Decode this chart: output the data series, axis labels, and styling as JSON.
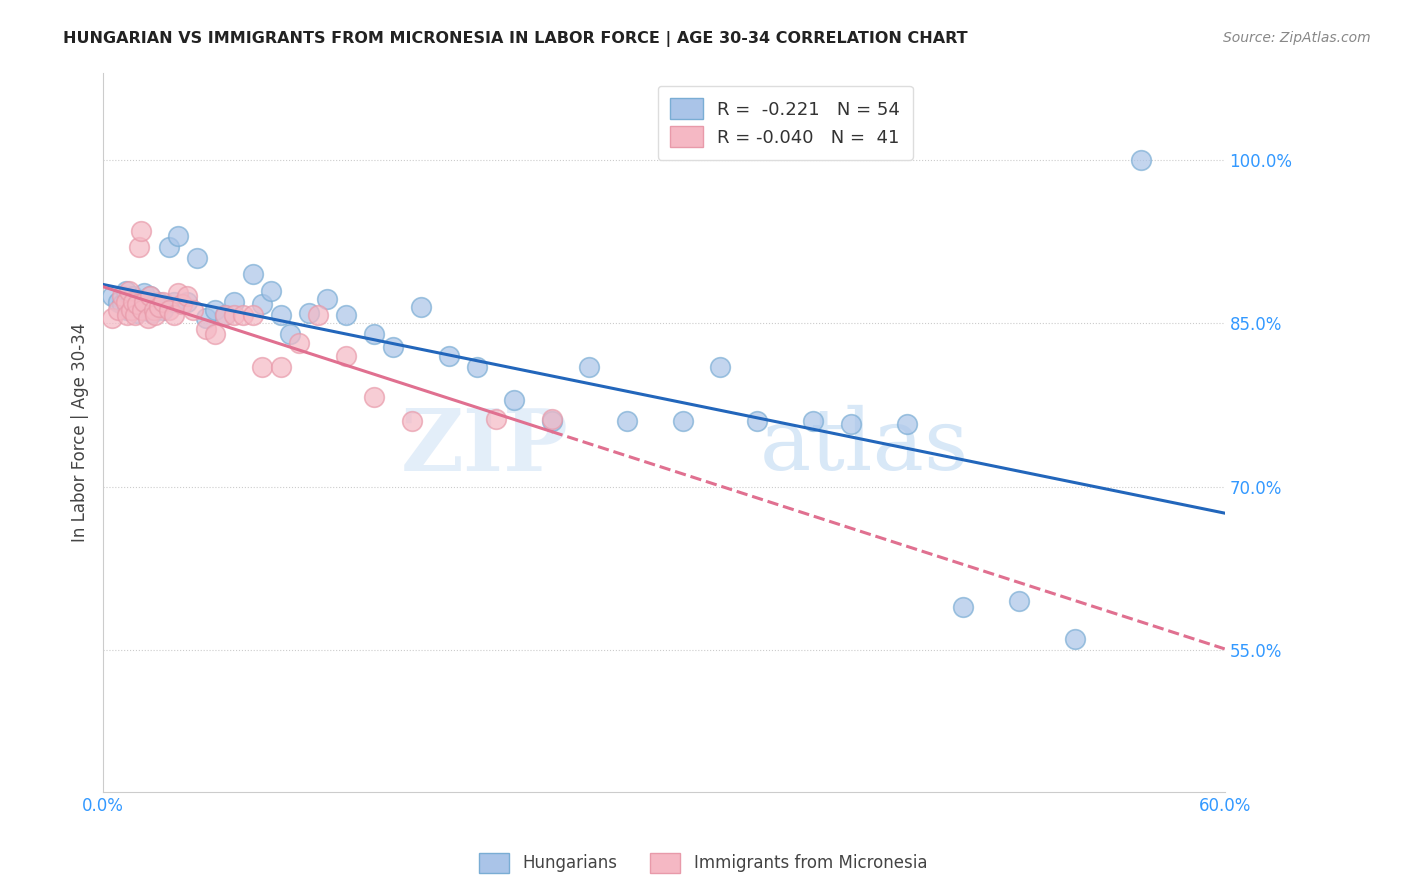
{
  "title": "HUNGARIAN VS IMMIGRANTS FROM MICRONESIA IN LABOR FORCE | AGE 30-34 CORRELATION CHART",
  "source": "Source: ZipAtlas.com",
  "ylabel": "In Labor Force | Age 30-34",
  "xlim": [
    0.0,
    0.6
  ],
  "ylim": [
    0.42,
    1.08
  ],
  "xticks": [
    0.0,
    0.6
  ],
  "xticklabels": [
    "0.0%",
    "60.0%"
  ],
  "yticks_right": [
    0.55,
    0.7,
    0.85,
    1.0
  ],
  "yticklabels_right": [
    "55.0%",
    "70.0%",
    "85.0%",
    "100.0%"
  ],
  "blue_color": "#aac4e8",
  "pink_color": "#f5b8c4",
  "blue_edge_color": "#7aadd4",
  "pink_edge_color": "#e89aaa",
  "blue_line_color": "#2266bb",
  "pink_line_color": "#e07090",
  "legend_r_blue": "-0.221",
  "legend_n_blue": "54",
  "legend_r_pink": "-0.040",
  "legend_n_pink": "41",
  "blue_scatter_x": [
    0.005,
    0.008,
    0.01,
    0.012,
    0.013,
    0.015,
    0.016,
    0.018,
    0.019,
    0.02,
    0.021,
    0.022,
    0.024,
    0.025,
    0.026,
    0.028,
    0.03,
    0.032,
    0.035,
    0.038,
    0.04,
    0.045,
    0.05,
    0.055,
    0.06,
    0.065,
    0.07,
    0.08,
    0.085,
    0.09,
    0.095,
    0.1,
    0.11,
    0.12,
    0.13,
    0.145,
    0.155,
    0.17,
    0.185,
    0.2,
    0.22,
    0.24,
    0.26,
    0.28,
    0.31,
    0.33,
    0.35,
    0.38,
    0.4,
    0.43,
    0.46,
    0.49,
    0.52,
    0.555
  ],
  "blue_scatter_y": [
    0.875,
    0.87,
    0.868,
    0.88,
    0.862,
    0.872,
    0.875,
    0.86,
    0.868,
    0.87,
    0.865,
    0.878,
    0.862,
    0.875,
    0.86,
    0.868,
    0.87,
    0.862,
    0.92,
    0.87,
    0.93,
    0.87,
    0.91,
    0.855,
    0.862,
    0.858,
    0.87,
    0.895,
    0.868,
    0.88,
    0.858,
    0.84,
    0.86,
    0.872,
    0.858,
    0.84,
    0.828,
    0.865,
    0.82,
    0.81,
    0.78,
    0.76,
    0.81,
    0.76,
    0.76,
    0.81,
    0.76,
    0.76,
    0.758,
    0.758,
    0.59,
    0.595,
    0.56,
    1.0
  ],
  "pink_scatter_x": [
    0.005,
    0.008,
    0.01,
    0.012,
    0.013,
    0.014,
    0.015,
    0.016,
    0.017,
    0.018,
    0.019,
    0.02,
    0.021,
    0.022,
    0.024,
    0.025,
    0.027,
    0.028,
    0.03,
    0.032,
    0.035,
    0.038,
    0.04,
    0.042,
    0.045,
    0.048,
    0.055,
    0.06,
    0.065,
    0.07,
    0.075,
    0.08,
    0.085,
    0.095,
    0.105,
    0.115,
    0.13,
    0.145,
    0.165,
    0.21,
    0.24
  ],
  "pink_scatter_y": [
    0.855,
    0.862,
    0.875,
    0.87,
    0.858,
    0.88,
    0.862,
    0.87,
    0.858,
    0.868,
    0.92,
    0.935,
    0.862,
    0.87,
    0.855,
    0.875,
    0.862,
    0.858,
    0.865,
    0.87,
    0.862,
    0.858,
    0.878,
    0.868,
    0.875,
    0.862,
    0.845,
    0.84,
    0.858,
    0.858,
    0.858,
    0.858,
    0.81,
    0.81,
    0.832,
    0.858,
    0.82,
    0.782,
    0.76,
    0.762,
    0.762
  ],
  "background_color": "#ffffff",
  "grid_color": "#cccccc",
  "title_color": "#222222",
  "axis_color": "#3399ff",
  "watermark_line1": "ZIP",
  "watermark_line2": "atlas"
}
